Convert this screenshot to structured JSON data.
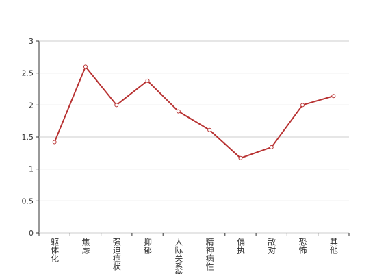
{
  "chart_data": {
    "type": "line",
    "categories": [
      "躯体化",
      "焦虑",
      "强迫症状",
      "抑郁",
      "人际关系敏感",
      "精神病性",
      "偏执",
      "敌对",
      "恐怖",
      "其他"
    ],
    "series": [
      {
        "color": "#b83232",
        "values": [
          1.42,
          2.6,
          2.0,
          2.38,
          1.9,
          1.61,
          1.17,
          1.34,
          2.0,
          2.14
        ]
      }
    ],
    "ylim": [
      0,
      3
    ],
    "yticks": [
      0,
      0.5,
      1,
      1.5,
      2,
      2.5,
      3
    ],
    "grid": true
  }
}
